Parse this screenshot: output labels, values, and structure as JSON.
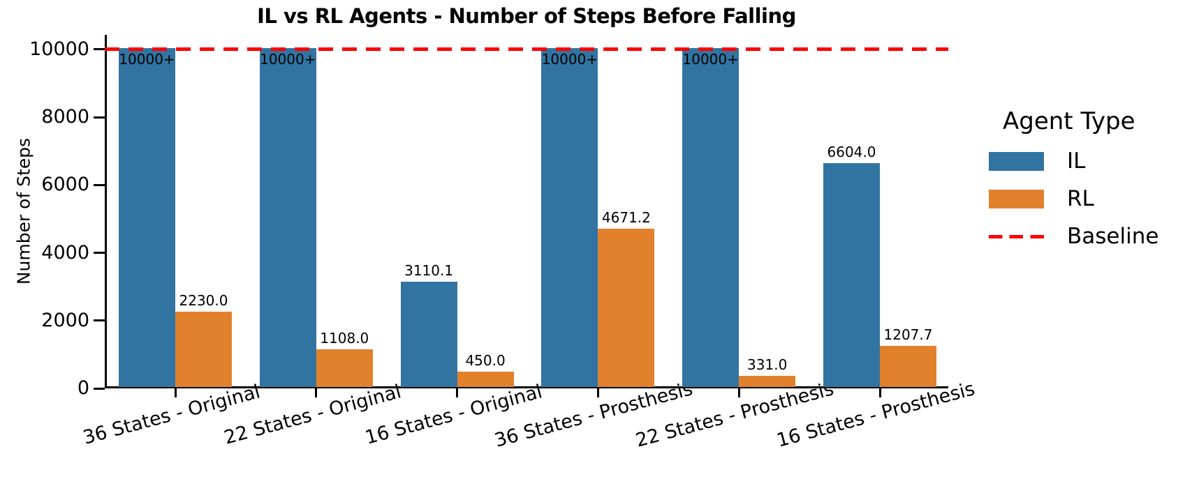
{
  "chart_data": {
    "type": "bar",
    "title": "IL vs RL Agents - Number of Steps Before Falling",
    "ylabel": "Number of Steps",
    "xlabel": "",
    "categories": [
      "36 States - Original",
      "22 States - Original",
      "16 States - Original",
      "36 States - Prosthesis",
      "22 States - Prosthesis",
      "16 States - Prosthesis"
    ],
    "series": [
      {
        "name": "IL",
        "color": "#3274A1",
        "values": [
          10000,
          10000,
          3110.1,
          10000,
          10000,
          6604.0
        ],
        "bar_labels": [
          "10000+",
          "10000+",
          "3110.1",
          "10000+",
          "10000+",
          "6604.0"
        ],
        "capped": [
          true,
          true,
          false,
          true,
          true,
          false
        ]
      },
      {
        "name": "RL",
        "color": "#E1812C",
        "values": [
          2230.0,
          1108.0,
          450.0,
          4671.2,
          331.0,
          1207.7
        ],
        "bar_labels": [
          "2230.0",
          "1108.0",
          "450.0",
          "4671.2",
          "331.0",
          "1207.7"
        ],
        "capped": [
          false,
          false,
          false,
          false,
          false,
          false
        ]
      }
    ],
    "baseline": {
      "label": "Baseline",
      "value": 10000,
      "color": "#FF0000",
      "style": "dashed"
    },
    "legend": {
      "title": "Agent Type",
      "position": "right",
      "entries": [
        "IL",
        "RL",
        "Baseline"
      ]
    },
    "y_ticks": [
      0,
      2000,
      4000,
      6000,
      8000,
      10000
    ],
    "ylim": [
      0,
      10430
    ],
    "grid": false
  }
}
